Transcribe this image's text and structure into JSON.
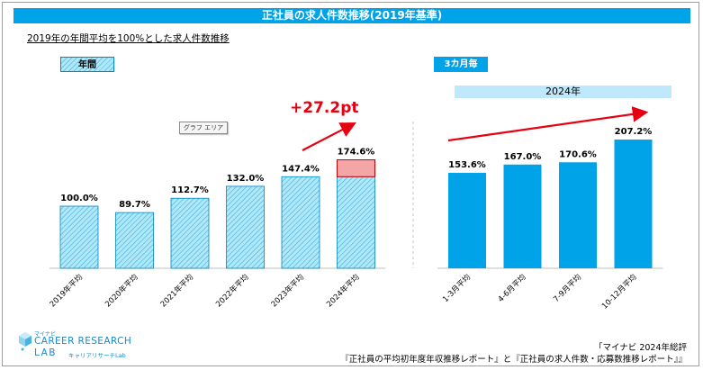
{
  "header": {
    "title": "正社員の求人件数推移(2019年基準)",
    "subtitle": "2019年の年間平均を100%とした求人件数推移"
  },
  "labels": {
    "annual_tag": "年間",
    "quarter_tag": "3カ月毎",
    "year_band": "2024年",
    "graph_area": "グラフ エリア",
    "increase": "+27.2pt"
  },
  "logo": {
    "small": "マイナビ",
    "main": "CAREER RESEARCH",
    "lab": "LAB",
    "sub": "キャリアリサーチLab"
  },
  "source": {
    "line1": "「マイナビ 2024年総評",
    "line2": "『正社員の平均初年度年収推移レポート』と『正社員の求人件数・応募数推移レポート』』"
  },
  "colors": {
    "accent": "#00a3e8",
    "hatch_fill": "#aee8f9",
    "hatch_line": "#0086c0",
    "highlight": "#f4a5a5",
    "arrow": "#e60012"
  },
  "chart_data": [
    {
      "type": "bar",
      "categories": [
        "2019年平均",
        "2020年平均",
        "2021年平均",
        "2022年平均",
        "2023年平均",
        "2024年平均"
      ],
      "values": [
        100.0,
        89.7,
        112.7,
        132.0,
        147.4,
        174.6
      ],
      "value_labels": [
        "100.0%",
        "89.7%",
        "112.7%",
        "132.0%",
        "147.4%",
        "174.6%"
      ],
      "highlight_segment": {
        "from": 147.4,
        "to": 174.6
      },
      "ylim": [
        0,
        245
      ]
    },
    {
      "type": "bar",
      "categories": [
        "1-3月平均",
        "4-6月平均",
        "7-9月平均",
        "10-12月平均"
      ],
      "values": [
        153.6,
        167.0,
        170.6,
        207.2
      ],
      "value_labels": [
        "153.6%",
        "167.0%",
        "170.6%",
        "207.2%"
      ],
      "ylim": [
        0,
        245
      ]
    }
  ]
}
